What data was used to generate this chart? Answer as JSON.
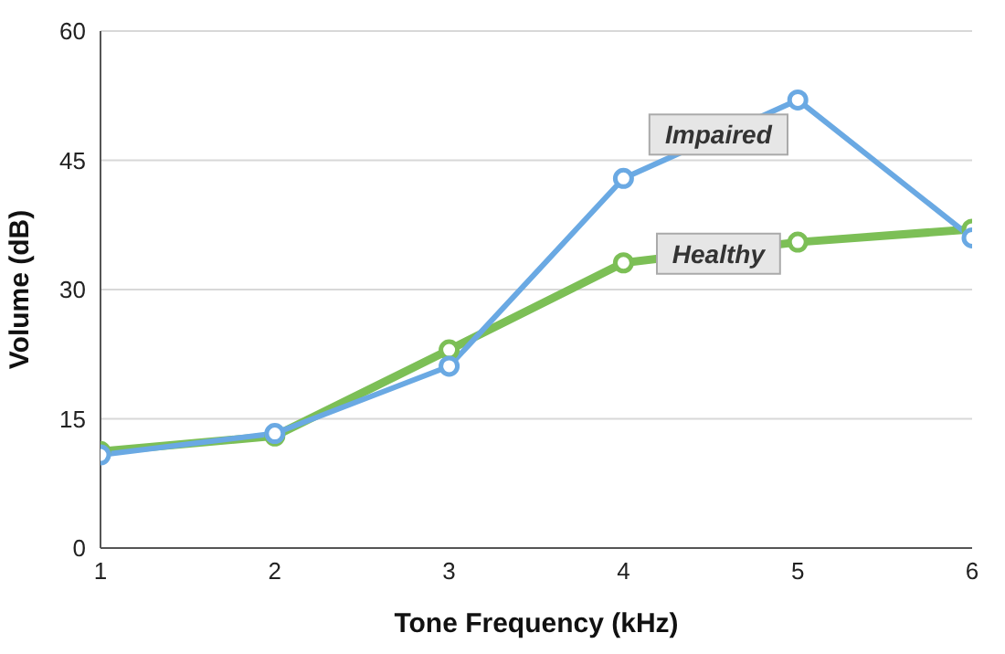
{
  "chart_data": {
    "type": "line",
    "xlabel": "Tone Frequency (kHz)",
    "ylabel": "Volume (dB)",
    "x": [
      1,
      2,
      3,
      4,
      5,
      6
    ],
    "series": [
      {
        "name": "Impaired",
        "color": "#6aa9e3",
        "values": [
          10.8,
          13.3,
          21.1,
          42.9,
          52.0,
          36.0
        ]
      },
      {
        "name": "Healthy",
        "color": "#7cbf56",
        "values": [
          11.2,
          13.0,
          23.0,
          33.1,
          35.5,
          37.0
        ]
      }
    ],
    "xlim": [
      1,
      6
    ],
    "xticks": [
      1,
      2,
      3,
      4,
      5,
      6
    ],
    "ylim": [
      0,
      60
    ],
    "yticks": [
      0,
      15,
      30,
      45,
      60
    ],
    "grid": "y",
    "legend": false,
    "marker": "circle",
    "line_style": "solid"
  }
}
